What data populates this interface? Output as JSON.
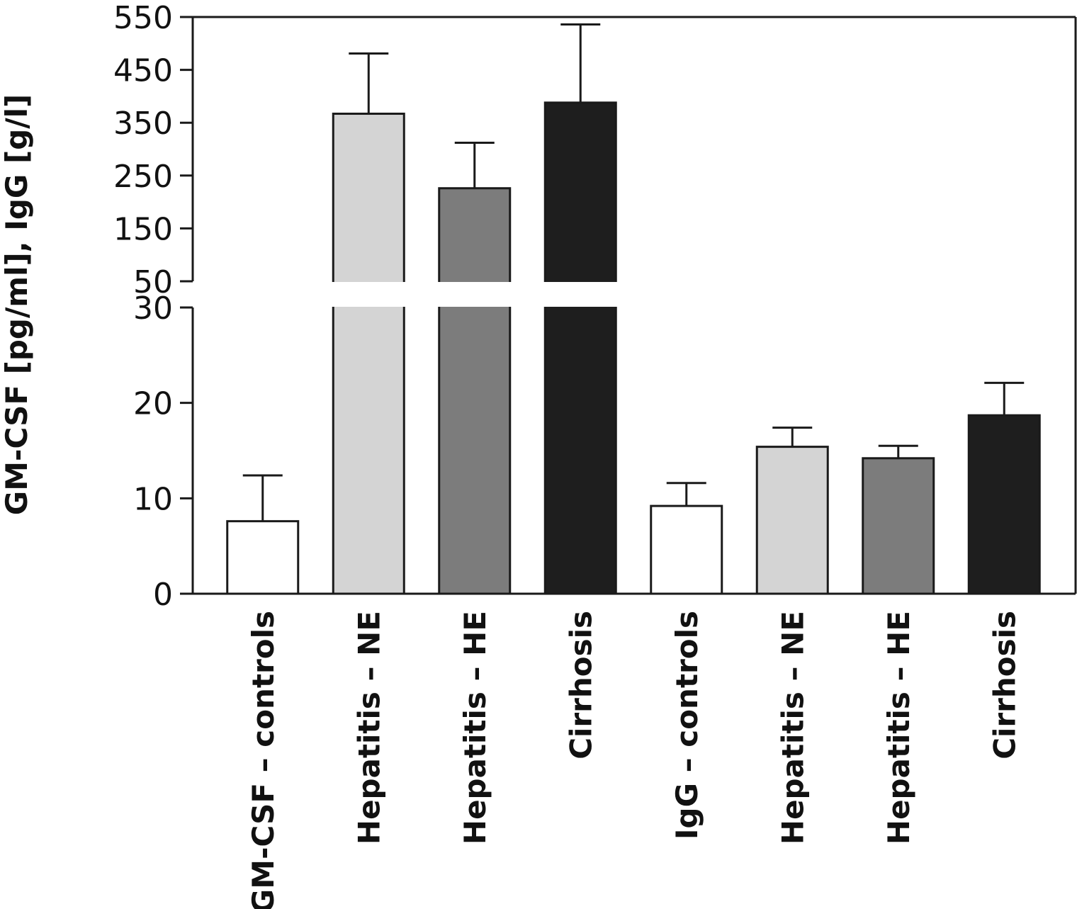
{
  "chart_data": {
    "type": "bar",
    "title": "",
    "ylabel": "GM-CSF [pg/ml], IgG [g/l]",
    "xlabel": "",
    "axis_break": {
      "lower_range": [
        0,
        30
      ],
      "upper_range": [
        50,
        550
      ],
      "upper_ticks": [
        50,
        150,
        250,
        350,
        450,
        550
      ],
      "lower_ticks": [
        0,
        10,
        20,
        30
      ]
    },
    "tick_labels": [
      "0",
      "10",
      "20",
      "30",
      "50",
      "150",
      "250",
      "350",
      "450",
      "550"
    ],
    "categories": [
      "GM-CSF – controls",
      "Hepatitis – NE",
      "Hepatitis – HE",
      "Cirrhosis",
      "IgG – controls",
      "Hepatitis – NE",
      "Hepatitis – HE",
      "Cirrhosis"
    ],
    "values": [
      7.6,
      367,
      226,
      388,
      9.2,
      15.4,
      14.2,
      18.7
    ],
    "errors": [
      4.8,
      114,
      86,
      148,
      2.4,
      2.0,
      1.3,
      3.4
    ],
    "colors": [
      "#ffffff",
      "#d4d4d4",
      "#7c7c7c",
      "#1e1e1e",
      "#ffffff",
      "#d4d4d4",
      "#7c7c7c",
      "#1e1e1e"
    ],
    "grid": false
  }
}
